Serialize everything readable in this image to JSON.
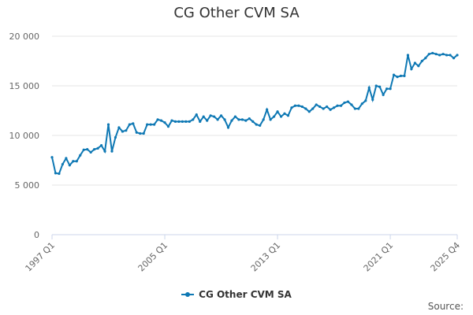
{
  "chart_data": {
    "type": "line",
    "title": "CG Other CVM SA",
    "source_label": "Source:",
    "grid": true,
    "legend_position": "bottom",
    "ylim": [
      0,
      20000
    ],
    "y_ticks": [
      {
        "value": 0,
        "label": "0"
      },
      {
        "value": 5000,
        "label": "5 000"
      },
      {
        "value": 10000,
        "label": "10 000"
      },
      {
        "value": 15000,
        "label": "15 000"
      },
      {
        "value": 20000,
        "label": "20 000"
      }
    ],
    "x_ticks": [
      {
        "index": 0,
        "label": "1997 Q1"
      },
      {
        "index": 32,
        "label": "2005 Q1"
      },
      {
        "index": 64,
        "label": "2013 Q1"
      },
      {
        "index": 96,
        "label": "2021 Q1"
      },
      {
        "index": 115,
        "label": "2025 Q4"
      }
    ],
    "series": [
      {
        "name": "CG Other CVM SA",
        "color": "#0e78b4",
        "values": [
          7800,
          6200,
          6150,
          7100,
          7700,
          7000,
          7400,
          7400,
          8000,
          8550,
          8600,
          8300,
          8600,
          8700,
          9000,
          8400,
          11100,
          8400,
          9800,
          10800,
          10400,
          10500,
          11100,
          11200,
          10300,
          10200,
          10200,
          11100,
          11100,
          11100,
          11600,
          11500,
          11300,
          10900,
          11500,
          11400,
          11400,
          11400,
          11400,
          11400,
          11600,
          12100,
          11400,
          11900,
          11500,
          12000,
          11900,
          11600,
          12000,
          11600,
          10800,
          11500,
          11900,
          11600,
          11600,
          11500,
          11700,
          11400,
          11100,
          11000,
          11600,
          12600,
          11600,
          11900,
          12400,
          11900,
          12200,
          12000,
          12800,
          13000,
          13000,
          12900,
          12700,
          12400,
          12700,
          13100,
          12900,
          12700,
          12900,
          12600,
          12800,
          13000,
          13000,
          13300,
          13400,
          13100,
          12700,
          12700,
          13200,
          13500,
          14800,
          13600,
          15000,
          14900,
          14100,
          14700,
          14700,
          16100,
          15900,
          16000,
          16000,
          18100,
          16700,
          17300,
          17000,
          17500,
          17800,
          18200,
          18300,
          18200,
          18100,
          18200,
          18100,
          18100,
          17800,
          18100
        ]
      }
    ]
  }
}
